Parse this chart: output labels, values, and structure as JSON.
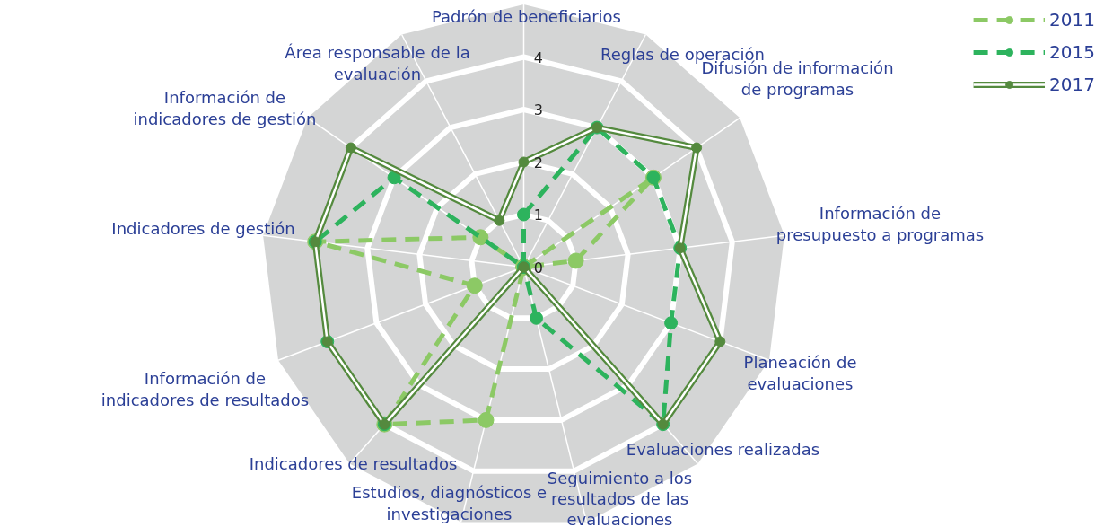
{
  "chart_data": {
    "type": "radar",
    "categories": [
      "Padrón de beneficiarios",
      "Reglas de operación",
      "Difusión de información de programas",
      "Información de presupuesto a programas",
      "Planeación de evaluaciones",
      "Evaluaciones realizadas",
      "Seguimiento a los resultados de las evaluaciones",
      "Estudios, diagnósticos e investigaciones",
      "Indicadores de resultados",
      "Información de indicadores de resultados",
      "Indicadores de gestión",
      "Información de indicadores de gestión",
      "Área responsable de la evaluación"
    ],
    "series": [
      {
        "name": "2011",
        "color": "#8cc965",
        "line_style": "dashed",
        "values": [
          0,
          0,
          3,
          1,
          0,
          0,
          0,
          3,
          4,
          1,
          4,
          1,
          0
        ]
      },
      {
        "name": "2015",
        "color": "#2db35d",
        "line_style": "dashed",
        "values": [
          1,
          3,
          3,
          3,
          3,
          4,
          1,
          0,
          4,
          4,
          4,
          3,
          0
        ]
      },
      {
        "name": "2017",
        "color": "#548a3e",
        "line_style": "solid",
        "values": [
          2,
          3,
          4,
          3,
          4,
          4,
          0,
          0,
          4,
          4,
          4,
          4,
          1
        ]
      }
    ],
    "ylim": [
      0,
      5
    ],
    "yticks": [
      0,
      1,
      2,
      3,
      4
    ],
    "marker": "circle",
    "grid": true,
    "legend": "top right"
  }
}
